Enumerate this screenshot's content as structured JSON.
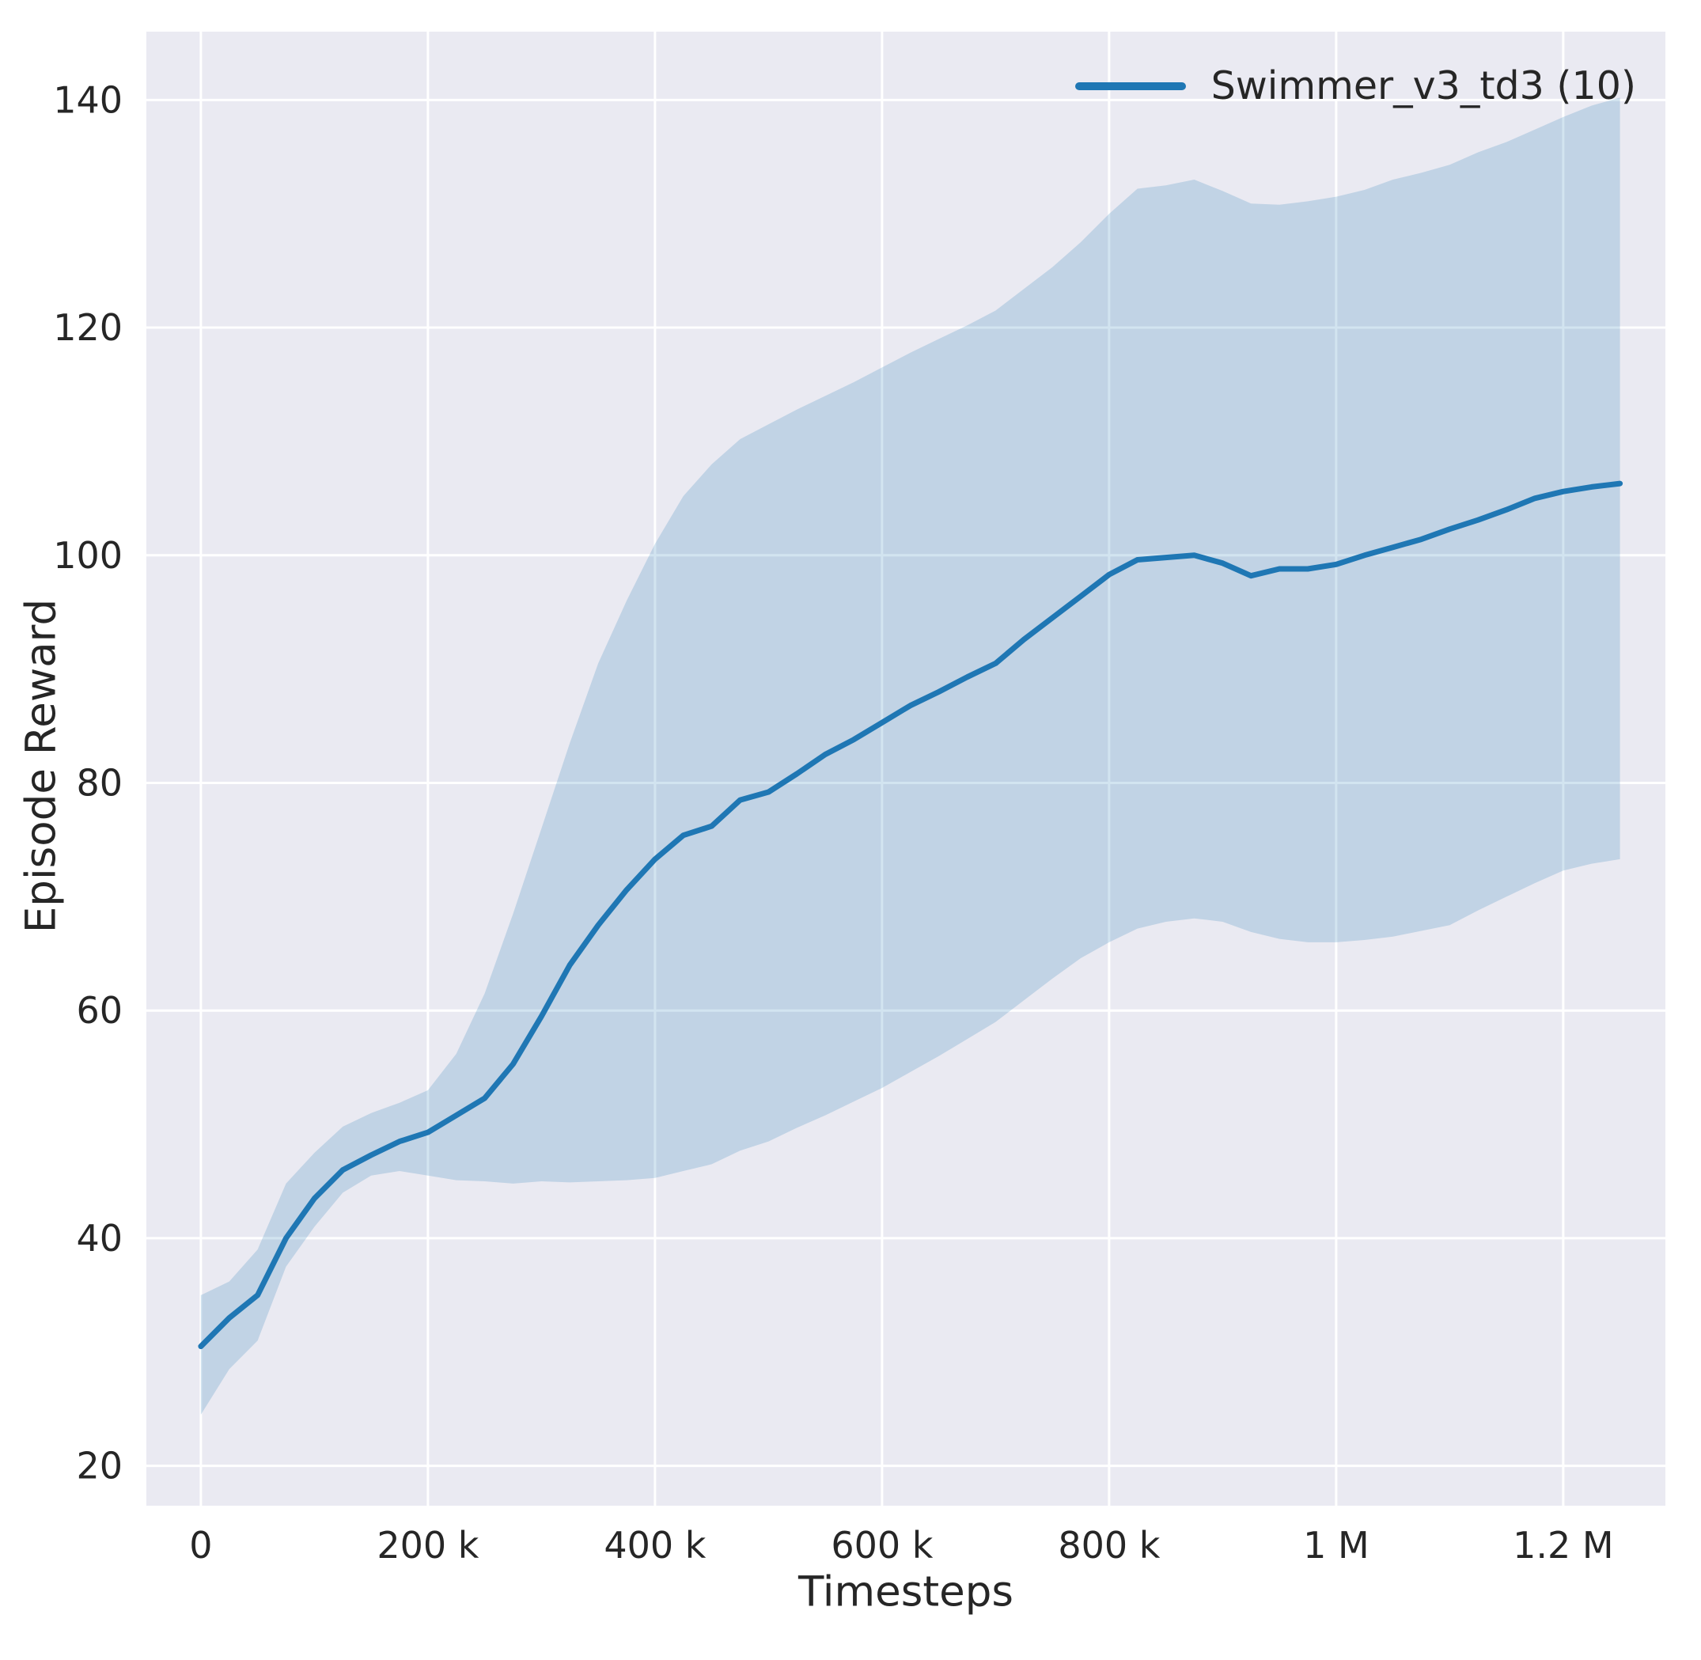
{
  "chart_data": {
    "type": "line",
    "title": "",
    "xlabel": "Timesteps",
    "ylabel": "Episode Reward",
    "legend_position": "upper right",
    "grid": true,
    "background": "#eaeaf2",
    "grid_color": "#ffffff",
    "band_opacity": 0.2,
    "xlim": [
      -48000,
      1290000
    ],
    "ylim": [
      16.5,
      146
    ],
    "x_ticks": [
      {
        "value": 0,
        "label": "0"
      },
      {
        "value": 200000,
        "label": "200 k"
      },
      {
        "value": 400000,
        "label": "400 k"
      },
      {
        "value": 600000,
        "label": "600 k"
      },
      {
        "value": 800000,
        "label": "800 k"
      },
      {
        "value": 1000000,
        "label": "1 M"
      },
      {
        "value": 1200000,
        "label": "1.2 M"
      }
    ],
    "y_ticks": [
      {
        "value": 20,
        "label": "20"
      },
      {
        "value": 40,
        "label": "40"
      },
      {
        "value": 60,
        "label": "60"
      },
      {
        "value": 80,
        "label": "80"
      },
      {
        "value": 100,
        "label": "100"
      },
      {
        "value": 120,
        "label": "120"
      },
      {
        "value": 140,
        "label": "140"
      }
    ],
    "x": [
      0,
      25000,
      50000,
      75000,
      100000,
      125000,
      150000,
      175000,
      200000,
      225000,
      250000,
      275000,
      300000,
      325000,
      350000,
      375000,
      400000,
      425000,
      450000,
      475000,
      500000,
      525000,
      550000,
      575000,
      600000,
      625000,
      650000,
      675000,
      700000,
      725000,
      750000,
      775000,
      800000,
      825000,
      850000,
      875000,
      900000,
      925000,
      950000,
      975000,
      1000000,
      1025000,
      1050000,
      1075000,
      1100000,
      1125000,
      1150000,
      1175000,
      1200000,
      1225000,
      1250000
    ],
    "series": [
      {
        "name": "Swimmer_v3_td3 (10)",
        "color": "#1f77b4",
        "mean": [
          30.5,
          33,
          35,
          40,
          43.5,
          46,
          47.3,
          48.5,
          49.3,
          50.8,
          52.3,
          55.3,
          59.5,
          64,
          67.5,
          70.6,
          73.3,
          75.4,
          76.2,
          78.5,
          79.2,
          80.8,
          82.5,
          83.8,
          85.3,
          86.8,
          88,
          89.3,
          90.5,
          92.6,
          94.5,
          96.4,
          98.3,
          99.6,
          99.8,
          100,
          99.3,
          98.2,
          98.8,
          98.8,
          99.2,
          100,
          100.7,
          101.4,
          102.3,
          103.1,
          104,
          105,
          105.6,
          106,
          106.3
        ],
        "lower": [
          24.5,
          28.5,
          31,
          37.5,
          41,
          44,
          45.5,
          45.9,
          45.5,
          45.1,
          45,
          44.8,
          45,
          44.9,
          45,
          45.1,
          45.3,
          45.9,
          46.5,
          47.7,
          48.5,
          49.7,
          50.8,
          52,
          53.2,
          54.6,
          56,
          57.5,
          59,
          60.9,
          62.8,
          64.6,
          66,
          67.2,
          67.8,
          68.1,
          67.8,
          66.9,
          66.3,
          66,
          66,
          66.2,
          66.5,
          67,
          67.5,
          68.8,
          70,
          71.2,
          72.3,
          72.9,
          73.3
        ],
        "upper": [
          35,
          36.2,
          39,
          44.8,
          47.5,
          49.8,
          51,
          51.9,
          53,
          56.2,
          61.5,
          68.5,
          76,
          83.5,
          90.5,
          96,
          101,
          105.2,
          108,
          110.2,
          111.5,
          112.8,
          114,
          115.2,
          116.5,
          117.8,
          119,
          120.2,
          121.5,
          123.4,
          125.3,
          127.5,
          130,
          132.2,
          132.5,
          133,
          132,
          130.9,
          130.8,
          131.1,
          131.5,
          132.1,
          133,
          133.6,
          134.3,
          135.4,
          136.3,
          137.4,
          138.5,
          139.5,
          140.2
        ]
      }
    ]
  }
}
